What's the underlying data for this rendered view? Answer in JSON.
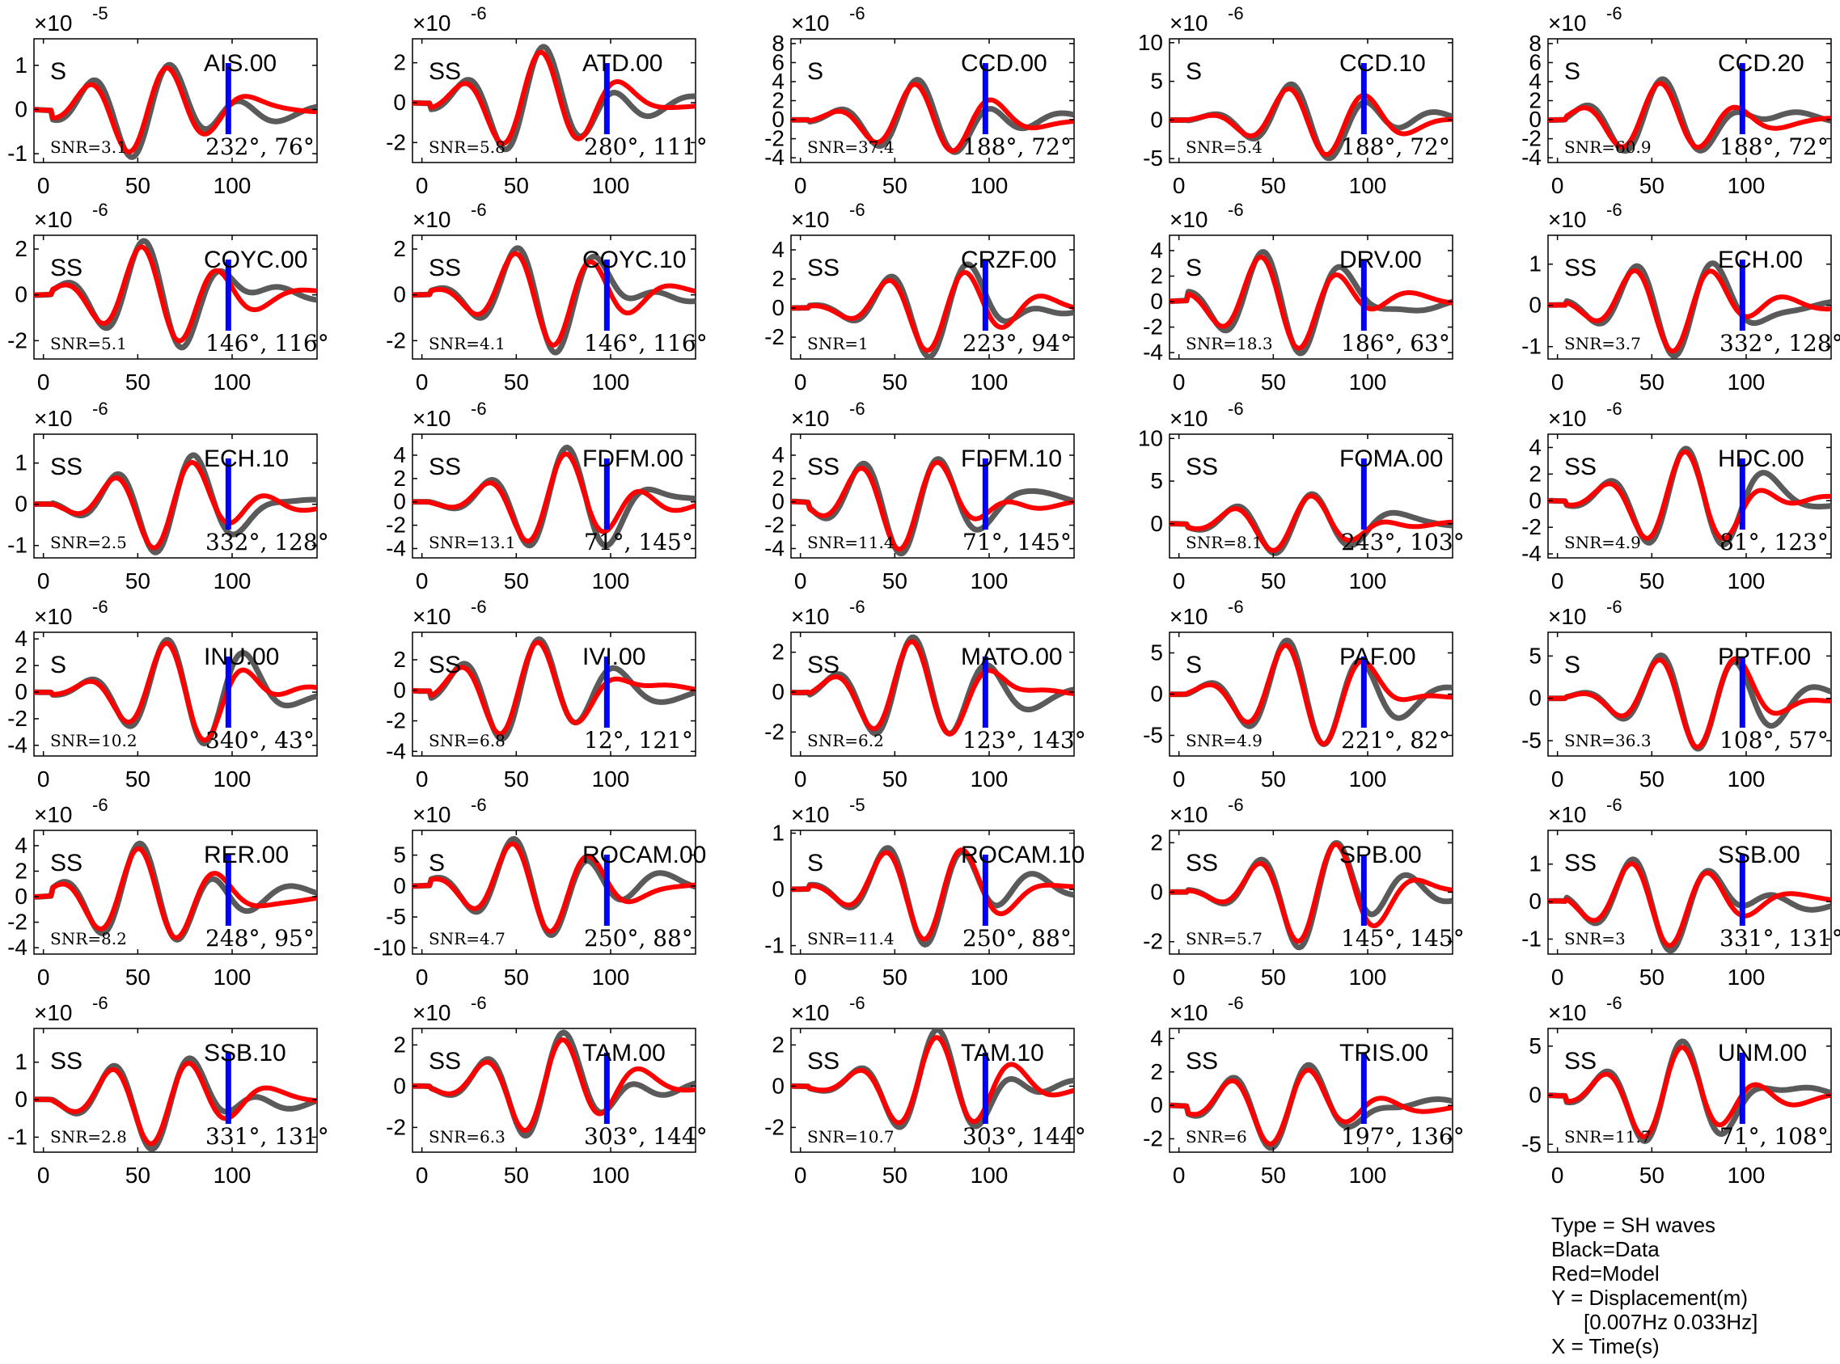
{
  "legend": {
    "type": "Type = SH waves",
    "black": "Black=Data",
    "red": "Red=Model",
    "y": "Y = Displacement(m)",
    "band": "[0.007Hz 0.033Hz]",
    "x": "X = Time(s)"
  },
  "colors": {
    "data": "#5a5a5a",
    "model": "#ff0000",
    "marker": "#0000ff",
    "axis": "#000000"
  },
  "chart_data": [
    {
      "type": "line",
      "station": "AIS.00",
      "phase": "S",
      "snr": "SNR=3.1",
      "az": "232°, 76°",
      "exp": "-5",
      "yticks": [
        -1,
        0,
        1
      ],
      "ylim": [
        -1.2,
        1.6
      ],
      "xticks": [
        0,
        50,
        100
      ],
      "xlim": [
        -5,
        145
      ]
    },
    {
      "type": "line",
      "station": "ATD.00",
      "phase": "SS",
      "snr": "SNR=5.8",
      "az": "280°, 111°",
      "exp": "-6",
      "yticks": [
        -2,
        0,
        2
      ],
      "ylim": [
        -3,
        3.2
      ],
      "xticks": [
        0,
        50,
        100
      ],
      "xlim": [
        -5,
        145
      ]
    },
    {
      "type": "line",
      "station": "CCD.00",
      "phase": "S",
      "snr": "SNR=37.4",
      "az": "188°, 72°",
      "exp": "-6",
      "yticks": [
        -4,
        -2,
        0,
        2,
        4,
        6,
        8
      ],
      "ylim": [
        -4.5,
        8.5
      ],
      "xticks": [
        0,
        50,
        100
      ],
      "xlim": [
        -5,
        145
      ]
    },
    {
      "type": "line",
      "station": "CCD.10",
      "phase": "S",
      "snr": "SNR=5.4",
      "az": "188°, 72°",
      "exp": "-6",
      "yticks": [
        -5,
        0,
        5,
        10
      ],
      "ylim": [
        -5.5,
        10.5
      ],
      "xticks": [
        0,
        50,
        100
      ],
      "xlim": [
        -5,
        145
      ]
    },
    {
      "type": "line",
      "station": "CCD.20",
      "phase": "S",
      "snr": "SNR=60.9",
      "az": "188°, 72°",
      "exp": "-6",
      "yticks": [
        -4,
        -2,
        0,
        2,
        4,
        6,
        8
      ],
      "ylim": [
        -4.5,
        8.5
      ],
      "xticks": [
        0,
        50,
        100
      ],
      "xlim": [
        -5,
        145
      ]
    },
    {
      "type": "line",
      "station": "COYC.00",
      "phase": "SS",
      "snr": "SNR=5.1",
      "az": "146°, 116°",
      "exp": "-6",
      "yticks": [
        -2,
        0,
        2
      ],
      "ylim": [
        -2.8,
        2.6
      ],
      "xticks": [
        0,
        50,
        100
      ],
      "xlim": [
        -5,
        145
      ]
    },
    {
      "type": "line",
      "station": "COYC.10",
      "phase": "SS",
      "snr": "SNR=4.1",
      "az": "146°, 116°",
      "exp": "-6",
      "yticks": [
        -2,
        0,
        2
      ],
      "ylim": [
        -2.8,
        2.6
      ],
      "xticks": [
        0,
        50,
        100
      ],
      "xlim": [
        -5,
        145
      ]
    },
    {
      "type": "line",
      "station": "CRZF.00",
      "phase": "SS",
      "snr": "SNR=1",
      "az": "223°, 94°",
      "exp": "-6",
      "yticks": [
        -2,
        0,
        2,
        4
      ],
      "ylim": [
        -3.5,
        5
      ],
      "xticks": [
        0,
        50,
        100
      ],
      "xlim": [
        -5,
        145
      ]
    },
    {
      "type": "line",
      "station": "DRV.00",
      "phase": "S",
      "snr": "SNR=18.3",
      "az": "186°, 63°",
      "exp": "-6",
      "yticks": [
        -4,
        -2,
        0,
        2,
        4
      ],
      "ylim": [
        -4.5,
        5.2
      ],
      "xticks": [
        0,
        50,
        100
      ],
      "xlim": [
        -5,
        145
      ]
    },
    {
      "type": "line",
      "station": "ECH.00",
      "phase": "SS",
      "snr": "SNR=3.7",
      "az": "332°, 128°",
      "exp": "-6",
      "yticks": [
        -1,
        0,
        1
      ],
      "ylim": [
        -1.3,
        1.7
      ],
      "xticks": [
        0,
        50,
        100
      ],
      "xlim": [
        -5,
        145
      ]
    },
    {
      "type": "line",
      "station": "ECH.10",
      "phase": "SS",
      "snr": "SNR=2.5",
      "az": "332°, 128°",
      "exp": "-6",
      "yticks": [
        -1,
        0,
        1
      ],
      "ylim": [
        -1.3,
        1.7
      ],
      "xticks": [
        0,
        50,
        100
      ],
      "xlim": [
        -5,
        145
      ]
    },
    {
      "type": "line",
      "station": "FDFM.00",
      "phase": "SS",
      "snr": "SNR=13.1",
      "az": "71°, 145°",
      "exp": "-6",
      "yticks": [
        -4,
        -2,
        0,
        2,
        4
      ],
      "ylim": [
        -4.8,
        5.8
      ],
      "xticks": [
        0,
        50,
        100
      ],
      "xlim": [
        -5,
        145
      ]
    },
    {
      "type": "line",
      "station": "FDFM.10",
      "phase": "SS",
      "snr": "SNR=11.4",
      "az": "71°, 145°",
      "exp": "-6",
      "yticks": [
        -4,
        -2,
        0,
        2,
        4
      ],
      "ylim": [
        -4.8,
        5.8
      ],
      "xticks": [
        0,
        50,
        100
      ],
      "xlim": [
        -5,
        145
      ]
    },
    {
      "type": "line",
      "station": "FOMA.00",
      "phase": "SS",
      "snr": "SNR=8.1",
      "az": "243°, 103°",
      "exp": "-6",
      "yticks": [
        0,
        5,
        10
      ],
      "ylim": [
        -4,
        10.5
      ],
      "xticks": [
        0,
        50,
        100
      ],
      "xlim": [
        -5,
        145
      ]
    },
    {
      "type": "line",
      "station": "HDC.00",
      "phase": "SS",
      "snr": "SNR=4.9",
      "az": "81°, 123°",
      "exp": "-6",
      "yticks": [
        -4,
        -2,
        0,
        2,
        4
      ],
      "ylim": [
        -4.3,
        5
      ],
      "xticks": [
        0,
        50,
        100
      ],
      "xlim": [
        -5,
        145
      ]
    },
    {
      "type": "line",
      "station": "INU.00",
      "phase": "S",
      "snr": "SNR=10.2",
      "az": "340°, 43°",
      "exp": "-6",
      "yticks": [
        -4,
        -2,
        0,
        2,
        4
      ],
      "ylim": [
        -4.8,
        4.5
      ],
      "xticks": [
        0,
        50,
        100
      ],
      "xlim": [
        -5,
        145
      ]
    },
    {
      "type": "line",
      "station": "IVI.00",
      "phase": "SS",
      "snr": "SNR=6.8",
      "az": "12°, 121°",
      "exp": "-6",
      "yticks": [
        -4,
        -2,
        0,
        2
      ],
      "ylim": [
        -4.3,
        3.8
      ],
      "xticks": [
        0,
        50,
        100
      ],
      "xlim": [
        -5,
        145
      ]
    },
    {
      "type": "line",
      "station": "MATO.00",
      "phase": "SS",
      "snr": "SNR=6.2",
      "az": "123°, 143°",
      "exp": "-6",
      "yticks": [
        -2,
        0,
        2
      ],
      "ylim": [
        -3.2,
        3
      ],
      "xticks": [
        0,
        50,
        100
      ],
      "xlim": [
        -5,
        145
      ]
    },
    {
      "type": "line",
      "station": "PAF.00",
      "phase": "S",
      "snr": "SNR=4.9",
      "az": "221°, 82°",
      "exp": "-6",
      "yticks": [
        -5,
        0,
        5
      ],
      "ylim": [
        -7.5,
        7.5
      ],
      "xticks": [
        0,
        50,
        100
      ],
      "xlim": [
        -5,
        145
      ]
    },
    {
      "type": "line",
      "station": "PPTF.00",
      "phase": "S",
      "snr": "SNR=36.3",
      "az": "108°, 57°",
      "exp": "-6",
      "yticks": [
        -5,
        0,
        5
      ],
      "ylim": [
        -6.8,
        7.8
      ],
      "xticks": [
        0,
        50,
        100
      ],
      "xlim": [
        -5,
        145
      ]
    },
    {
      "type": "line",
      "station": "RER.00",
      "phase": "SS",
      "snr": "SNR=8.2",
      "az": "248°, 95°",
      "exp": "-6",
      "yticks": [
        -4,
        -2,
        0,
        2,
        4
      ],
      "ylim": [
        -4.5,
        5.2
      ],
      "xticks": [
        0,
        50,
        100
      ],
      "xlim": [
        -5,
        145
      ]
    },
    {
      "type": "line",
      "station": "ROCAM.00",
      "phase": "S",
      "snr": "SNR=4.7",
      "az": "250°, 88°",
      "exp": "-6",
      "yticks": [
        -10,
        -5,
        0,
        5
      ],
      "ylim": [
        -11,
        9
      ],
      "xticks": [
        0,
        50,
        100
      ],
      "xlim": [
        -5,
        145
      ]
    },
    {
      "type": "line",
      "station": "ROCAM.10",
      "phase": "S",
      "snr": "SNR=11.4",
      "az": "250°, 88°",
      "exp": "-5",
      "yticks": [
        -1,
        0,
        1
      ],
      "ylim": [
        -1.15,
        1.05
      ],
      "xticks": [
        0,
        50,
        100
      ],
      "xlim": [
        -5,
        145
      ]
    },
    {
      "type": "line",
      "station": "SPB.00",
      "phase": "SS",
      "snr": "SNR=5.7",
      "az": "145°, 145°",
      "exp": "-6",
      "yticks": [
        -2,
        0,
        2
      ],
      "ylim": [
        -2.5,
        2.5
      ],
      "xticks": [
        0,
        50,
        100
      ],
      "xlim": [
        -5,
        145
      ]
    },
    {
      "type": "line",
      "station": "SSB.00",
      "phase": "SS",
      "snr": "SNR=3",
      "az": "331°, 131°",
      "exp": "-6",
      "yticks": [
        -1,
        0,
        1
      ],
      "ylim": [
        -1.4,
        1.9
      ],
      "xticks": [
        0,
        50,
        100
      ],
      "xlim": [
        -5,
        145
      ]
    },
    {
      "type": "line",
      "station": "SSB.10",
      "phase": "SS",
      "snr": "SNR=2.8",
      "az": "331°, 131°",
      "exp": "-6",
      "yticks": [
        -1,
        0,
        1
      ],
      "ylim": [
        -1.4,
        1.9
      ],
      "xticks": [
        0,
        50,
        100
      ],
      "xlim": [
        -5,
        145
      ]
    },
    {
      "type": "line",
      "station": "TAM.00",
      "phase": "SS",
      "snr": "SNR=6.3",
      "az": "303°, 144°",
      "exp": "-6",
      "yticks": [
        -2,
        0,
        2
      ],
      "ylim": [
        -3.2,
        2.8
      ],
      "xticks": [
        0,
        50,
        100
      ],
      "xlim": [
        -5,
        145
      ]
    },
    {
      "type": "line",
      "station": "TAM.10",
      "phase": "SS",
      "snr": "SNR=10.7",
      "az": "303°, 144°",
      "exp": "-6",
      "yticks": [
        -2,
        0,
        2
      ],
      "ylim": [
        -3.2,
        2.8
      ],
      "xticks": [
        0,
        50,
        100
      ],
      "xlim": [
        -5,
        145
      ]
    },
    {
      "type": "line",
      "station": "TRIS.00",
      "phase": "SS",
      "snr": "SNR=6",
      "az": "197°, 136°",
      "exp": "-6",
      "yticks": [
        -2,
        0,
        2,
        4
      ],
      "ylim": [
        -2.8,
        4.6
      ],
      "xticks": [
        0,
        50,
        100
      ],
      "xlim": [
        -5,
        145
      ]
    },
    {
      "type": "line",
      "station": "UNM.00",
      "phase": "SS",
      "snr": "SNR=11.7",
      "az": "71°, 108°",
      "exp": "-6",
      "yticks": [
        -5,
        0,
        5
      ],
      "ylim": [
        -5.8,
        6.8
      ],
      "xticks": [
        0,
        50,
        100
      ],
      "xlim": [
        -5,
        145
      ]
    }
  ]
}
